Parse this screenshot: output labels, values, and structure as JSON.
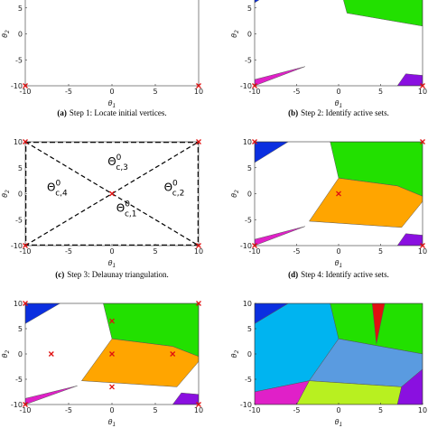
{
  "axes": {
    "xlim": [
      -10,
      10
    ],
    "ylim": [
      -10,
      10
    ],
    "xticks": [
      -10,
      -5,
      0,
      5,
      10
    ],
    "yticks": [
      -10,
      -5,
      0,
      5,
      10
    ],
    "xlabel": {
      "base": "θ",
      "sub": "1"
    },
    "ylabel": {
      "base": "θ",
      "sub": "2"
    }
  },
  "panels": [
    {
      "caption": {
        "tag": "(a)",
        "text": "Step 1: Locate initial vertices."
      },
      "points": {
        "x": [
          -10,
          10
        ],
        "y": [
          -10,
          -10
        ]
      }
    },
    {
      "caption": {
        "tag": "(b)",
        "text": "Step 2: Identify active sets."
      },
      "points": {
        "x": [
          -10,
          10
        ],
        "y": [
          -10,
          -10
        ]
      }
    },
    {
      "caption": {
        "tag": "(c)",
        "text": "Step 3: Delaunay triangulation."
      },
      "points": {
        "x": [
          -10,
          10,
          -10,
          10,
          0
        ],
        "y": [
          10,
          10,
          -10,
          -10,
          0
        ]
      },
      "annotations": [
        {
          "base": "Θ",
          "sup": "0",
          "sub": "c,3"
        },
        {
          "base": "Θ",
          "sup": "0",
          "sub": "c,4"
        },
        {
          "base": "Θ",
          "sup": "0",
          "sub": "c,2"
        },
        {
          "base": "Θ",
          "sup": "0",
          "sub": "c,1"
        }
      ]
    },
    {
      "caption": {
        "tag": "(d)",
        "text": "Step 4: Identify active sets."
      },
      "points": {
        "x": [
          -10,
          10,
          -10,
          10,
          0
        ],
        "y": [
          10,
          10,
          -10,
          -10,
          0
        ]
      }
    },
    {
      "points": {
        "x": [
          -10,
          10,
          -10,
          10,
          0,
          -7,
          0,
          7,
          0
        ],
        "y": [
          10,
          10,
          -10,
          -10,
          6.5,
          0,
          0,
          0,
          -6.5
        ]
      }
    },
    {
      "points": {
        "x": [],
        "y": []
      }
    }
  ]
}
